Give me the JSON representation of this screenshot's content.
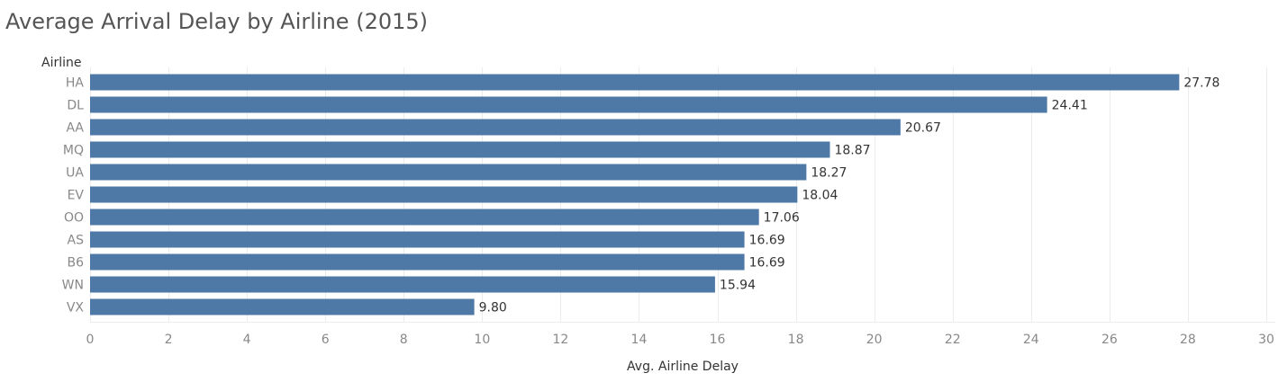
{
  "title": "Average Arrival Delay by Airline (2015)",
  "colors": {
    "bar": "#4e79a7",
    "grid": "#ececec",
    "axis_text": "#888888",
    "label_text": "#333333",
    "title_text": "#555555"
  },
  "chart_data": {
    "type": "bar",
    "orientation": "horizontal",
    "title": "Average Arrival Delay by Airline (2015)",
    "category_header": "Airline",
    "xlabel": "Avg. Airline Delay",
    "categories": [
      "HA",
      "DL",
      "AA",
      "MQ",
      "UA",
      "EV",
      "OO",
      "AS",
      "B6",
      "WN",
      "VX"
    ],
    "values": [
      27.78,
      24.41,
      20.67,
      18.87,
      18.27,
      18.04,
      17.06,
      16.69,
      16.69,
      15.94,
      9.8
    ],
    "value_labels": [
      "27.78",
      "24.41",
      "20.67",
      "18.87",
      "18.27",
      "18.04",
      "17.06",
      "16.69",
      "16.69",
      "15.94",
      "9.80"
    ],
    "xlim": [
      0,
      30
    ],
    "xticks": [
      0,
      2,
      4,
      6,
      8,
      10,
      12,
      14,
      16,
      18,
      20,
      22,
      24,
      26,
      28,
      30
    ],
    "grid": "vertical",
    "legend": "none"
  }
}
